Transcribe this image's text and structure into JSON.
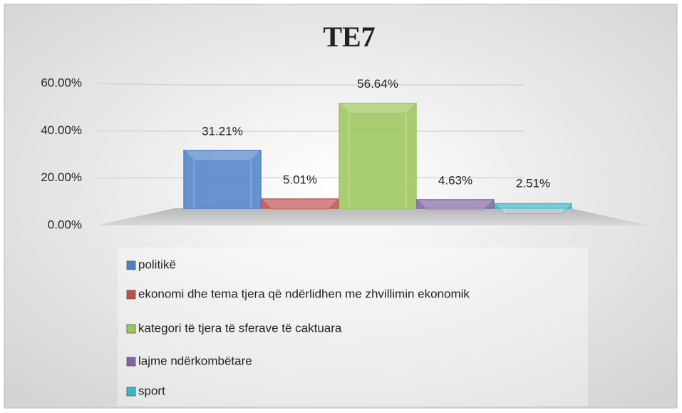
{
  "chart_data": {
    "type": "bar",
    "title": "TE7",
    "ylim": [
      0,
      60
    ],
    "yticks": [
      {
        "value": 0,
        "label": "0.00%"
      },
      {
        "value": 20,
        "label": "20.00%"
      },
      {
        "value": 40,
        "label": "40.00%"
      },
      {
        "value": 60,
        "label": "60.00%"
      }
    ],
    "grid": true,
    "legend": "bottom",
    "series": [
      {
        "name": "politikë",
        "color": "#4f81c9",
        "values": [
          31.21
        ],
        "value_labels": [
          "31.21%"
        ]
      },
      {
        "name": "ekonomi dhe tema tjera që ndërlidhen me zhvillimin ekonomik",
        "color": "#c0504d",
        "values": [
          5.01
        ],
        "value_labels": [
          "5.01%"
        ]
      },
      {
        "name": "kategori të tjera të sferave të caktuara",
        "color": "#9bc75a",
        "values": [
          56.64
        ],
        "value_labels": [
          "56.64%"
        ]
      },
      {
        "name": "lajme ndërkombëtare",
        "color": "#8064a2",
        "values": [
          4.63
        ],
        "value_labels": [
          "4.63%"
        ]
      },
      {
        "name": "sport",
        "color": "#3ab5cc",
        "values": [
          2.51
        ],
        "value_labels": [
          "2.51%"
        ]
      }
    ]
  }
}
